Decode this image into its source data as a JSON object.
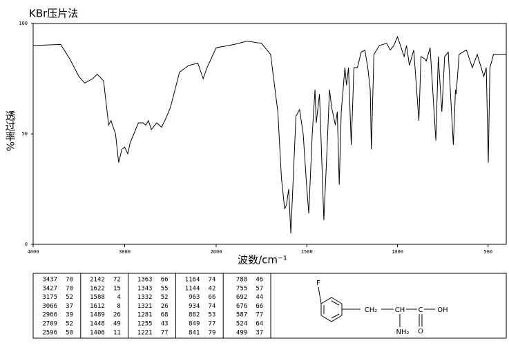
{
  "chart_data": {
    "type": "line",
    "title": "KBr压片法",
    "x_label": "波数/cm⁻¹",
    "y_label": "透过率%",
    "xlim": [
      4000,
      400
    ],
    "xticks": [
      4000,
      3000,
      2000,
      1500,
      1000,
      500
    ],
    "x_scale_change_at": 2000,
    "ylim": [
      0,
      100
    ],
    "yticks": [
      0,
      50,
      100
    ],
    "grid": false,
    "x": [
      4000,
      3700,
      3600,
      3500,
      3437,
      3350,
      3300,
      3230,
      3175,
      3150,
      3100,
      3066,
      3030,
      3000,
      2966,
      2940,
      2900,
      2850,
      2800,
      2770,
      2740,
      2709,
      2650,
      2596,
      2550,
      2500,
      2400,
      2300,
      2200,
      2142,
      2100,
      2000,
      1900,
      1830,
      1750,
      1700,
      1660,
      1640,
      1622,
      1612,
      1600,
      1588,
      1575,
      1560,
      1540,
      1520,
      1500,
      1489,
      1470,
      1455,
      1448,
      1430,
      1406,
      1390,
      1375,
      1363,
      1343,
      1332,
      1321,
      1310,
      1290,
      1281,
      1270,
      1255,
      1240,
      1221,
      1200,
      1180,
      1164,
      1150,
      1144,
      1130,
      1100,
      1060,
      1040,
      1020,
      1000,
      963,
      950,
      934,
      910,
      882,
      870,
      849,
      841,
      820,
      788,
      775,
      755,
      740,
      720,
      692,
      680,
      676,
      660,
      620,
      587,
      560,
      524,
      510,
      499,
      490,
      470,
      430,
      400
    ],
    "series": [
      {
        "name": "spectrum",
        "color": "#000000",
        "values": [
          90,
          90.5,
          84,
          76,
          73,
          75,
          77,
          74,
          54,
          56,
          50,
          37,
          43,
          44,
          41,
          46,
          50,
          55,
          55,
          54,
          56,
          52,
          55,
          53,
          57,
          62,
          78,
          81,
          82,
          75,
          80,
          89,
          90.5,
          92,
          91,
          86,
          60,
          30,
          16,
          18,
          25,
          5,
          30,
          58,
          61,
          50,
          25,
          14,
          50,
          70,
          55,
          68,
          11,
          40,
          70,
          62,
          54,
          60,
          27,
          60,
          80,
          72,
          80,
          45,
          80,
          80,
          87,
          88,
          80,
          70,
          43,
          86,
          90,
          91,
          88,
          90,
          94,
          85,
          90,
          81,
          88,
          56,
          85,
          84,
          83,
          89,
          47,
          85,
          60,
          85,
          87,
          45,
          70,
          68,
          86,
          88,
          80,
          86,
          76,
          80,
          37,
          80,
          86,
          86,
          86
        ]
      }
    ]
  },
  "peak_table": {
    "columns": [
      [
        [
          3437,
          70
        ],
        [
          3427,
          70
        ],
        [
          3175,
          52
        ],
        [
          3066,
          37
        ],
        [
          2966,
          39
        ],
        [
          2709,
          52
        ],
        [
          2596,
          50
        ]
      ],
      [
        [
          2142,
          72
        ],
        [
          1622,
          15
        ],
        [
          1588,
          4
        ],
        [
          1612,
          8
        ],
        [
          1489,
          26
        ],
        [
          1448,
          49
        ],
        [
          1406,
          11
        ]
      ],
      [
        [
          1363,
          66
        ],
        [
          1343,
          55
        ],
        [
          1332,
          52
        ],
        [
          1321,
          26
        ],
        [
          1281,
          68
        ],
        [
          1255,
          43
        ],
        [
          1221,
          77
        ]
      ],
      [
        [
          1164,
          74
        ],
        [
          1144,
          42
        ],
        [
          963,
          66
        ],
        [
          934,
          74
        ],
        [
          882,
          53
        ],
        [
          849,
          77
        ],
        [
          841,
          79
        ]
      ],
      [
        [
          788,
          46
        ],
        [
          755,
          57
        ],
        [
          692,
          44
        ],
        [
          676,
          66
        ],
        [
          587,
          77
        ],
        [
          524,
          64
        ],
        [
          499,
          37
        ]
      ]
    ]
  },
  "structure": {
    "labels": [
      "F",
      "CH₂",
      "CH",
      "C",
      "OH",
      "NH₂",
      "O"
    ]
  }
}
